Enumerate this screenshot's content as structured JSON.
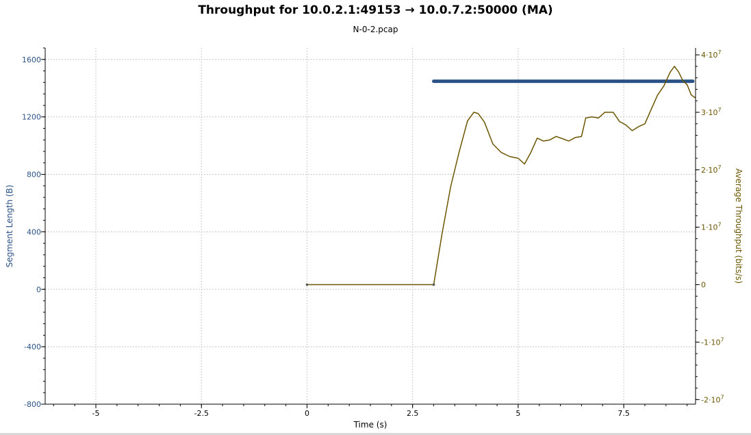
{
  "chart_data": {
    "type": "line",
    "title": "Throughput for 10.0.2.1:49153 → 10.0.7.2:50000 (MA)",
    "subtitle": "N-0-2.pcap",
    "xlabel": "Time (s)",
    "ylabel_left": "Segment Length (B)",
    "ylabel_right": "Average Throughput (bits/s)",
    "xlim": [
      -6.2,
      9.2
    ],
    "ylim_left": [
      -800,
      1680
    ],
    "ylim_right": [
      -20800000,
      41200000
    ],
    "x_ticks": [
      {
        "value": -5,
        "label": "-5"
      },
      {
        "value": -2.5,
        "label": "-2.5"
      },
      {
        "value": 0,
        "label": "0"
      },
      {
        "value": 2.5,
        "label": "2.5"
      },
      {
        "value": 5,
        "label": "5"
      },
      {
        "value": 7.5,
        "label": "7.5"
      }
    ],
    "y_left_ticks": [
      {
        "value": 1600,
        "label": "1600"
      },
      {
        "value": 1200,
        "label": "1200"
      },
      {
        "value": 800,
        "label": "800"
      },
      {
        "value": 400,
        "label": "400"
      },
      {
        "value": 0,
        "label": "0"
      },
      {
        "value": -400,
        "label": "-400"
      },
      {
        "value": -800,
        "label": "-800"
      }
    ],
    "y_right_ticks": [
      {
        "value": 40000000,
        "label": "4·10",
        "exp": "7"
      },
      {
        "value": 30000000,
        "label": "3·10",
        "exp": "7"
      },
      {
        "value": 20000000,
        "label": "2·10",
        "exp": "7"
      },
      {
        "value": 10000000,
        "label": "1·10",
        "exp": "7"
      },
      {
        "value": 0,
        "label": "0",
        "exp": ""
      },
      {
        "value": -10000000,
        "label": "-1·10",
        "exp": "7"
      },
      {
        "value": -20000000,
        "label": "-2·10",
        "exp": "7"
      }
    ],
    "grid": true,
    "colors": {
      "segment": "#2a5286",
      "throughput": "#6b5500",
      "grid": "#c8c8c8",
      "axis": "#000000"
    },
    "series": [
      {
        "name": "Segment Length",
        "axis": "left",
        "x_range": [
          3.0,
          9.2
        ],
        "y": 1448
      },
      {
        "name": "Average Throughput",
        "axis": "right",
        "x": [
          0,
          3.0,
          3.2,
          3.4,
          3.6,
          3.8,
          3.95,
          4.05,
          4.2,
          4.4,
          4.6,
          4.8,
          5.0,
          5.15,
          5.3,
          5.45,
          5.6,
          5.75,
          5.9,
          6.05,
          6.2,
          6.35,
          6.5,
          6.6,
          6.75,
          6.9,
          7.05,
          7.25,
          7.4,
          7.55,
          7.7,
          7.85,
          8.0,
          8.15,
          8.3,
          8.45,
          8.6,
          8.7,
          8.8,
          8.9,
          9.0,
          9.1,
          9.2
        ],
        "y": [
          0,
          0,
          9000000,
          17000000,
          23000000,
          28500000,
          30000000,
          29800000,
          28300000,
          24500000,
          23000000,
          22300000,
          22000000,
          21000000,
          23000000,
          25500000,
          25000000,
          25200000,
          25800000,
          25400000,
          25000000,
          25600000,
          25800000,
          29000000,
          29200000,
          29000000,
          30000000,
          30000000,
          28400000,
          27800000,
          26800000,
          27500000,
          28000000,
          30500000,
          33000000,
          34600000,
          37000000,
          38000000,
          37000000,
          35500000,
          34800000,
          33000000,
          32500000
        ]
      }
    ]
  }
}
